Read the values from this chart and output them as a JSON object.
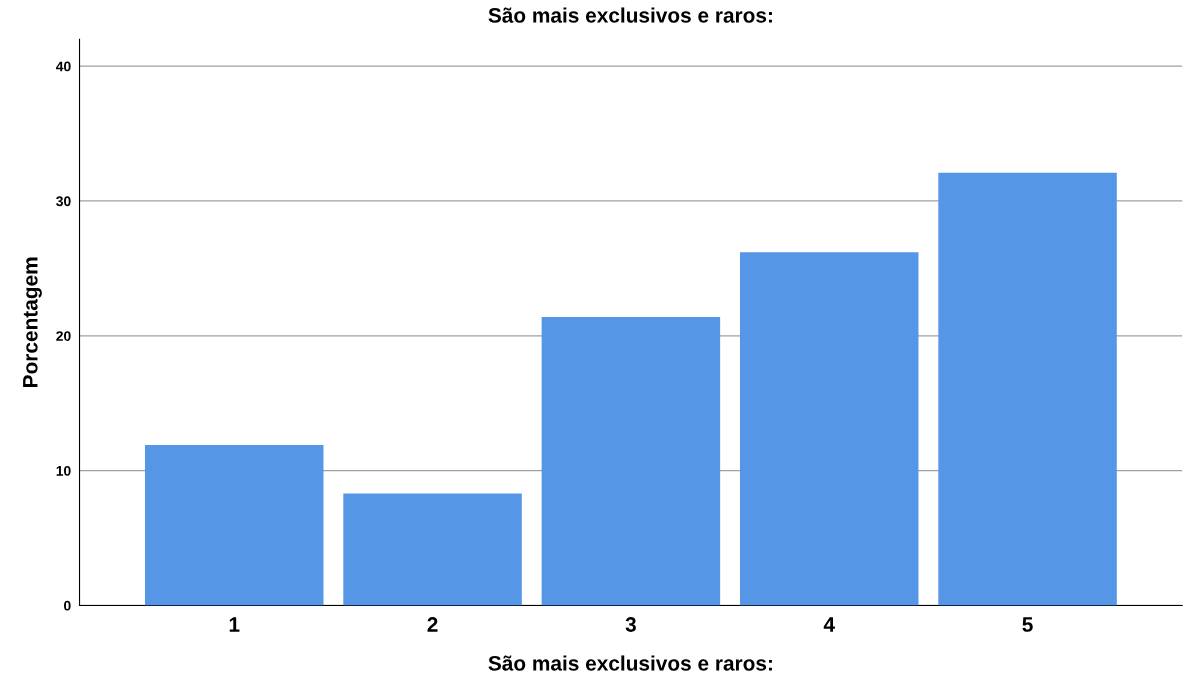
{
  "chart_data": {
    "type": "bar",
    "title": "São mais exclusivos e raros:",
    "xlabel": "São mais exclusivos e raros:",
    "ylabel": "Porcentagem",
    "categories": [
      "1",
      "2",
      "3",
      "4",
      "5"
    ],
    "values": [
      11.9,
      8.3,
      21.4,
      26.2,
      32.1
    ],
    "color": "#5596e6",
    "ylim": [
      0,
      42
    ],
    "yticks": [
      0,
      10,
      20,
      30,
      40
    ],
    "grid": "y"
  }
}
